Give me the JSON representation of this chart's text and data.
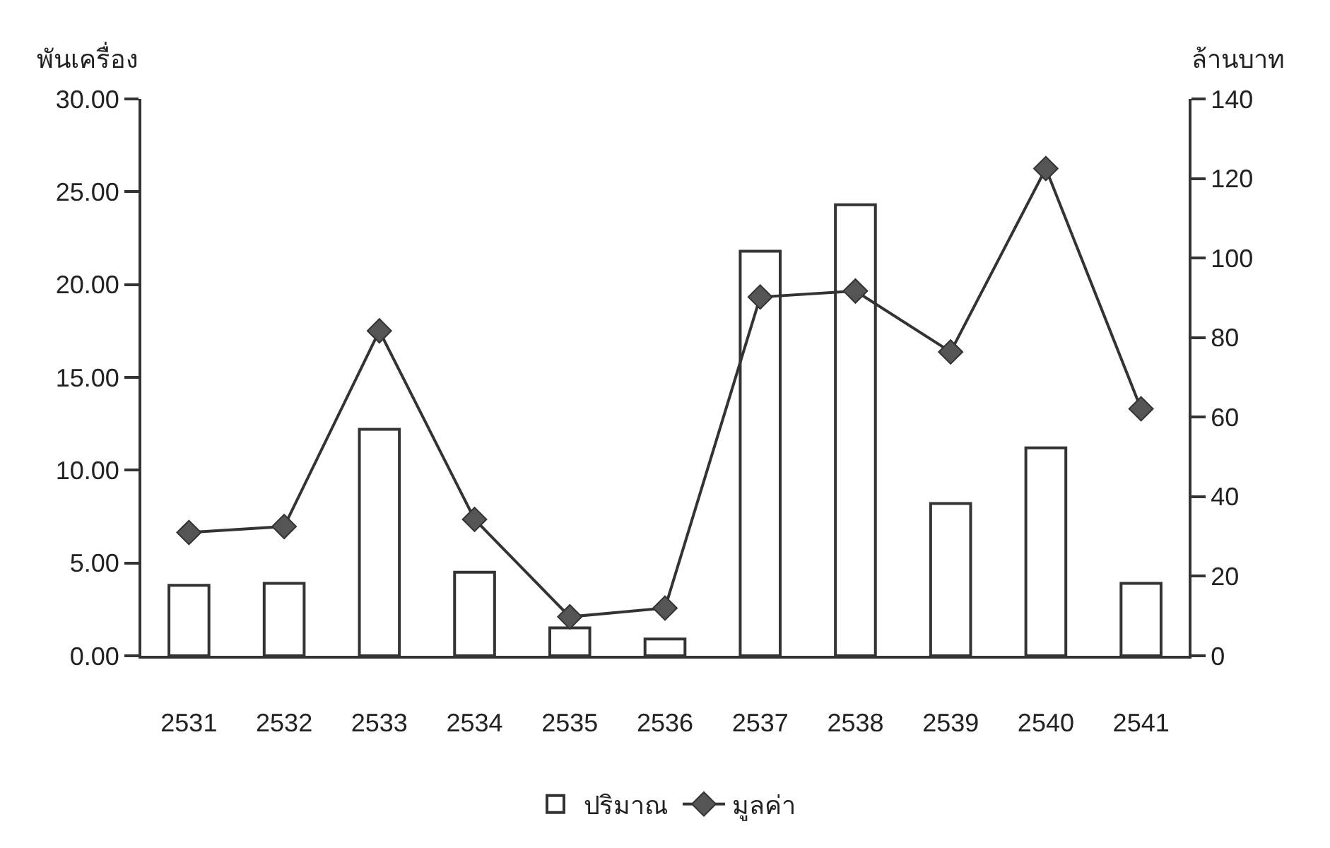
{
  "chart_data": {
    "type": "bar",
    "ylabel": "พันเครื่อง",
    "y2label": "ล้านบาท",
    "categories": [
      "2531",
      "2532",
      "2533",
      "2534",
      "2535",
      "2536",
      "2537",
      "2538",
      "2539",
      "2540",
      "2541"
    ],
    "series": [
      {
        "name": "ปริมาณ",
        "color": "#ffffff",
        "values": [
          3.8,
          3.9,
          12.2,
          4.5,
          1.5,
          0.9,
          21.8,
          24.3,
          8.2,
          11.2,
          3.9
        ]
      },
      {
        "name": "มูลค่า",
        "type": "line",
        "axis": "y2",
        "color": "#333333",
        "marker": "diamond",
        "values": [
          31,
          32.5,
          81.7,
          34.3,
          9.8,
          12,
          90.2,
          91.7,
          76.4,
          122.5,
          62.1
        ]
      }
    ],
    "ylim": [
      0,
      30
    ],
    "yticks": [
      {
        "value": 0,
        "label": "0.00"
      },
      {
        "value": 5,
        "label": "5.00"
      },
      {
        "value": 10,
        "label": "10.00"
      },
      {
        "value": 15,
        "label": "15.00"
      },
      {
        "value": 20,
        "label": "20.00"
      },
      {
        "value": 25,
        "label": "25.00"
      },
      {
        "value": 30,
        "label": "30.00"
      }
    ],
    "y2lim": [
      0,
      140
    ],
    "y2ticks": [
      0,
      20,
      40,
      60,
      80,
      100,
      120,
      140
    ],
    "legend": "bottom"
  }
}
